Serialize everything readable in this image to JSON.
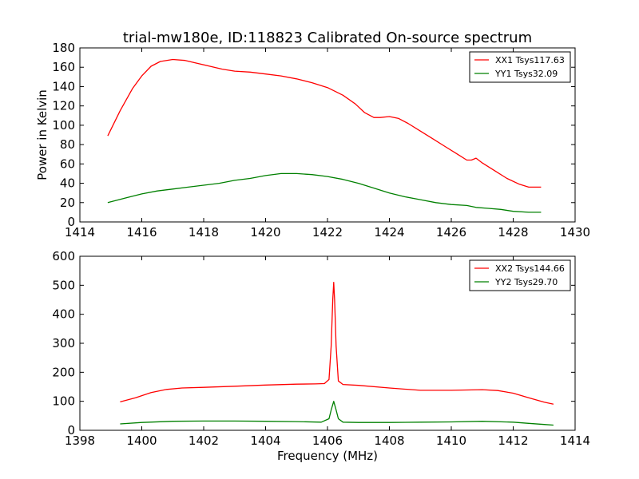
{
  "figure": {
    "title": "trial-mw180e, ID:118823 Calibrated On-source spectrum"
  },
  "chart_data": [
    {
      "type": "line",
      "title": "trial-mw180e, ID:118823 Calibrated On-source spectrum",
      "xlabel": "",
      "ylabel": "Power in Kelvin",
      "xlim": [
        1414,
        1430
      ],
      "ylim": [
        0,
        180
      ],
      "xticks": [
        1414,
        1416,
        1418,
        1420,
        1422,
        1424,
        1426,
        1428,
        1430
      ],
      "yticks": [
        0,
        20,
        40,
        60,
        80,
        100,
        120,
        140,
        160,
        180
      ],
      "grid": false,
      "legend_position": "top-right",
      "series": [
        {
          "name": "XX1 Tsys117.63",
          "color": "#ff0000",
          "x": [
            1414.9,
            1415.3,
            1415.7,
            1416.0,
            1416.3,
            1416.6,
            1417.0,
            1417.4,
            1417.8,
            1418.2,
            1418.6,
            1419.0,
            1419.5,
            1420.0,
            1420.5,
            1421.0,
            1421.5,
            1422.0,
            1422.5,
            1422.9,
            1423.2,
            1423.5,
            1423.7,
            1424.0,
            1424.3,
            1424.6,
            1425.0,
            1425.4,
            1425.8,
            1426.2,
            1426.5,
            1426.65,
            1426.8,
            1427.0,
            1427.4,
            1427.8,
            1428.2,
            1428.5,
            1428.9
          ],
          "values": [
            89,
            115,
            138,
            151,
            161,
            166,
            168,
            167,
            164,
            161,
            158,
            156,
            155,
            153,
            151,
            148,
            144,
            139,
            131,
            122,
            113,
            108,
            108,
            109,
            107,
            102,
            94,
            86,
            78,
            70,
            64,
            64,
            66,
            61,
            53,
            45,
            39,
            36,
            36
          ]
        },
        {
          "name": "YY1 Tsys32.09",
          "color": "#008000",
          "x": [
            1414.9,
            1415.5,
            1416.0,
            1416.5,
            1417.0,
            1417.5,
            1418.0,
            1418.5,
            1419.0,
            1419.5,
            1420.0,
            1420.5,
            1421.0,
            1421.5,
            1422.0,
            1422.5,
            1423.0,
            1423.5,
            1424.0,
            1424.5,
            1425.0,
            1425.5,
            1426.0,
            1426.5,
            1426.8,
            1427.2,
            1427.6,
            1428.0,
            1428.5,
            1428.9
          ],
          "values": [
            20,
            25,
            29,
            32,
            34,
            36,
            38,
            40,
            43,
            45,
            48,
            50,
            50,
            49,
            47,
            44,
            40,
            35,
            30,
            26,
            23,
            20,
            18,
            17,
            15,
            14,
            13,
            11,
            10,
            10
          ]
        }
      ]
    },
    {
      "type": "line",
      "title": "",
      "xlabel": "Frequency (MHz)",
      "ylabel": "",
      "xlim": [
        1398,
        1414
      ],
      "ylim": [
        0,
        600
      ],
      "xticks": [
        1398,
        1400,
        1402,
        1404,
        1406,
        1408,
        1410,
        1412,
        1414
      ],
      "yticks": [
        0,
        100,
        200,
        300,
        400,
        500,
        600
      ],
      "grid": false,
      "legend_position": "top-right",
      "series": [
        {
          "name": "XX2 Tsys144.66",
          "color": "#ff0000",
          "x": [
            1399.3,
            1399.8,
            1400.3,
            1400.8,
            1401.3,
            1402.0,
            1403.0,
            1404.0,
            1405.0,
            1405.6,
            1405.9,
            1406.05,
            1406.12,
            1406.17,
            1406.2,
            1406.23,
            1406.28,
            1406.35,
            1406.5,
            1407.0,
            1408.0,
            1409.0,
            1410.0,
            1411.0,
            1411.5,
            1412.0,
            1412.5,
            1413.0,
            1413.3
          ],
          "values": [
            98,
            112,
            130,
            141,
            146,
            148,
            152,
            156,
            159,
            160,
            161,
            175,
            290,
            450,
            510,
            450,
            290,
            170,
            158,
            155,
            146,
            138,
            138,
            140,
            137,
            128,
            112,
            97,
            90
          ]
        },
        {
          "name": "YY2 Tsys29.70",
          "color": "#008000",
          "x": [
            1399.3,
            1400.0,
            1401.0,
            1402.0,
            1403.0,
            1404.0,
            1405.0,
            1405.8,
            1406.05,
            1406.12,
            1406.2,
            1406.28,
            1406.35,
            1406.5,
            1407.0,
            1408.0,
            1409.0,
            1410.0,
            1411.0,
            1412.0,
            1412.5,
            1413.0,
            1413.3
          ],
          "values": [
            22,
            27,
            31,
            32,
            32,
            31,
            30,
            28,
            40,
            70,
            100,
            70,
            40,
            28,
            27,
            27,
            28,
            29,
            31,
            28,
            24,
            20,
            18
          ]
        }
      ]
    }
  ]
}
